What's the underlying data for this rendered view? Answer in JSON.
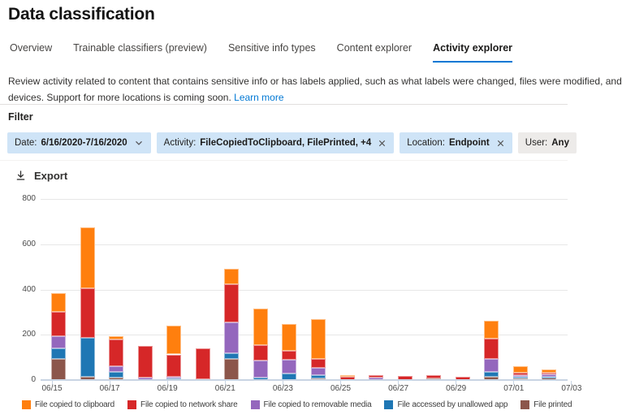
{
  "page": {
    "title": "Data classification"
  },
  "tabs": [
    {
      "label": "Overview"
    },
    {
      "label": "Trainable classifiers (preview)"
    },
    {
      "label": "Sensitive info types"
    },
    {
      "label": "Content explorer"
    },
    {
      "label": "Activity explorer"
    }
  ],
  "description": {
    "line1": "Review activity related to content that contains sensitive info or has labels applied, such as what labels were changed, files were modified, and",
    "line2": "devices. Support for more locations is coming soon.",
    "learn_more": "Learn more"
  },
  "filter": {
    "label": "Filter",
    "pills": [
      {
        "label": "Date:",
        "value": "6/16/2020-7/16/2020",
        "icon": "chevron-down"
      },
      {
        "label": "Activity:",
        "value": "FileCopiedToClipboard, FilePrinted, +4",
        "icon": "close"
      },
      {
        "label": "Location:",
        "value": "Endpoint",
        "icon": "close"
      },
      {
        "label": "User:",
        "value": "Any",
        "icon": "none"
      }
    ]
  },
  "toolbar": {
    "export_label": "Export"
  },
  "chart_data": {
    "type": "bar",
    "stacked": true,
    "x": [
      "06/15",
      "06/16",
      "06/17",
      "06/18",
      "06/19",
      "06/20",
      "06/21",
      "06/22",
      "06/23",
      "06/24",
      "06/25",
      "06/26",
      "06/27",
      "06/28",
      "06/29",
      "06/30",
      "07/01",
      "07/02"
    ],
    "series": [
      {
        "name": "File printed",
        "color": "#8c564b",
        "values": [
          95,
          15,
          10,
          0,
          0,
          5,
          95,
          0,
          0,
          8,
          0,
          0,
          0,
          7,
          0,
          13,
          8,
          10
        ]
      },
      {
        "name": "File accessed by unallowed app",
        "color": "#1f77b4",
        "values": [
          45,
          170,
          25,
          0,
          8,
          0,
          25,
          10,
          30,
          12,
          0,
          0,
          0,
          0,
          0,
          22,
          7,
          4
        ]
      },
      {
        "name": "File copied to removable media",
        "color": "#9467bd",
        "values": [
          55,
          0,
          25,
          10,
          5,
          0,
          135,
          75,
          60,
          33,
          0,
          10,
          0,
          0,
          0,
          57,
          8,
          12
        ]
      },
      {
        "name": "File copied to network share",
        "color": "#d62728",
        "values": [
          105,
          220,
          120,
          140,
          100,
          135,
          170,
          70,
          38,
          40,
          15,
          10,
          18,
          15,
          15,
          90,
          8,
          8
        ]
      },
      {
        "name": "File copied to clipboard",
        "color": "#ff7f0e",
        "values": [
          85,
          270,
          15,
          0,
          127,
          0,
          65,
          160,
          120,
          175,
          8,
          0,
          0,
          0,
          0,
          80,
          30,
          14
        ]
      }
    ],
    "legend": [
      {
        "label": "File copied to clipboard",
        "color": "#ff7f0e"
      },
      {
        "label": "File copied to network share",
        "color": "#d62728"
      },
      {
        "label": "File copied to removable media",
        "color": "#9467bd"
      },
      {
        "label": "File accessed by unallowed app",
        "color": "#1f77b4"
      },
      {
        "label": "File printed",
        "color": "#8c564b"
      }
    ],
    "yticks": [
      0,
      200,
      400,
      600,
      800
    ],
    "ylim": [
      0,
      800
    ],
    "xtick_labels": [
      "06/15",
      "06/17",
      "06/19",
      "06/21",
      "06/23",
      "06/25",
      "06/27",
      "06/29",
      "07/01",
      "07/03"
    ],
    "grid": true,
    "legend_position": "bottom"
  },
  "colors": {
    "accent": "#0078d4",
    "pill_bg_blue": "#cfe4f7",
    "pill_bg_gray": "#edebe9",
    "axis_line": "#c8d4e3"
  }
}
